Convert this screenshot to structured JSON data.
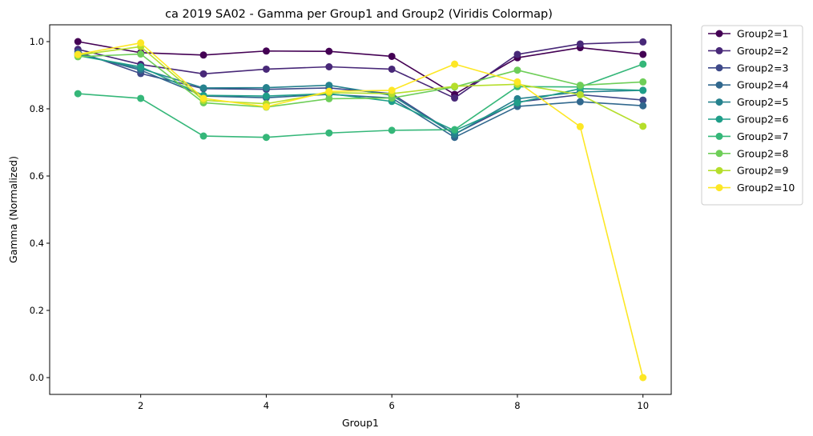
{
  "chart_data": {
    "type": "line",
    "title": "ca 2019 SA02 - Gamma per Group1 and Group2 (Viridis Colormap)",
    "xlabel": "Group1",
    "ylabel": "Gamma (Normalized)",
    "xlim": [
      0.55,
      10.45
    ],
    "ylim": [
      -0.05,
      1.05
    ],
    "xticks": [
      2,
      4,
      6,
      8,
      10
    ],
    "yticks": [
      0.0,
      0.2,
      0.4,
      0.6,
      0.8,
      1.0
    ],
    "ytick_labels": [
      "0.0",
      "0.2",
      "0.4",
      "0.6",
      "0.8",
      "1.0"
    ],
    "grid": false,
    "legend_position": "outside-right-top",
    "x": [
      1,
      2,
      3,
      4,
      5,
      6,
      7,
      8,
      9,
      10
    ],
    "series": [
      {
        "name": "Group2=1",
        "color": "#440154",
        "values": [
          1.0,
          0.967,
          0.96,
          0.972,
          0.971,
          0.956,
          0.843,
          0.952,
          0.982,
          0.962
        ]
      },
      {
        "name": "Group2=2",
        "color": "#482878",
        "values": [
          0.977,
          0.932,
          0.904,
          0.918,
          0.925,
          0.918,
          0.832,
          0.962,
          0.993,
          0.999
        ]
      },
      {
        "name": "Group2=3",
        "color": "#3e4989",
        "values": [
          0.97,
          0.905,
          0.86,
          0.858,
          0.862,
          0.845,
          0.725,
          0.82,
          0.842,
          0.826
        ]
      },
      {
        "name": "Group2=4",
        "color": "#31688e",
        "values": [
          0.965,
          0.915,
          0.838,
          0.833,
          0.843,
          0.832,
          0.715,
          0.807,
          0.821,
          0.809
        ]
      },
      {
        "name": "Group2=5",
        "color": "#26828e",
        "values": [
          0.962,
          0.92,
          0.862,
          0.863,
          0.87,
          0.84,
          0.724,
          0.83,
          0.85,
          0.855
        ]
      },
      {
        "name": "Group2=6",
        "color": "#1f9e89",
        "values": [
          0.958,
          0.925,
          0.84,
          0.838,
          0.845,
          0.822,
          0.735,
          0.818,
          0.86,
          0.855
        ]
      },
      {
        "name": "Group2=7",
        "color": "#35b779",
        "values": [
          0.845,
          0.831,
          0.719,
          0.715,
          0.728,
          0.736,
          0.738,
          0.866,
          0.865,
          0.933
        ]
      },
      {
        "name": "Group2=8",
        "color": "#6ece58",
        "values": [
          0.955,
          0.963,
          0.818,
          0.805,
          0.83,
          0.832,
          0.865,
          0.915,
          0.87,
          0.88
        ]
      },
      {
        "name": "Group2=9",
        "color": "#b5de2b",
        "values": [
          0.96,
          0.985,
          0.825,
          0.815,
          0.848,
          0.845,
          0.867,
          0.873,
          0.842,
          0.748
        ]
      },
      {
        "name": "Group2=10",
        "color": "#fde725",
        "values": [
          0.962,
          0.996,
          0.831,
          0.806,
          0.852,
          0.855,
          0.933,
          0.88,
          0.747,
          0.0
        ]
      }
    ]
  }
}
